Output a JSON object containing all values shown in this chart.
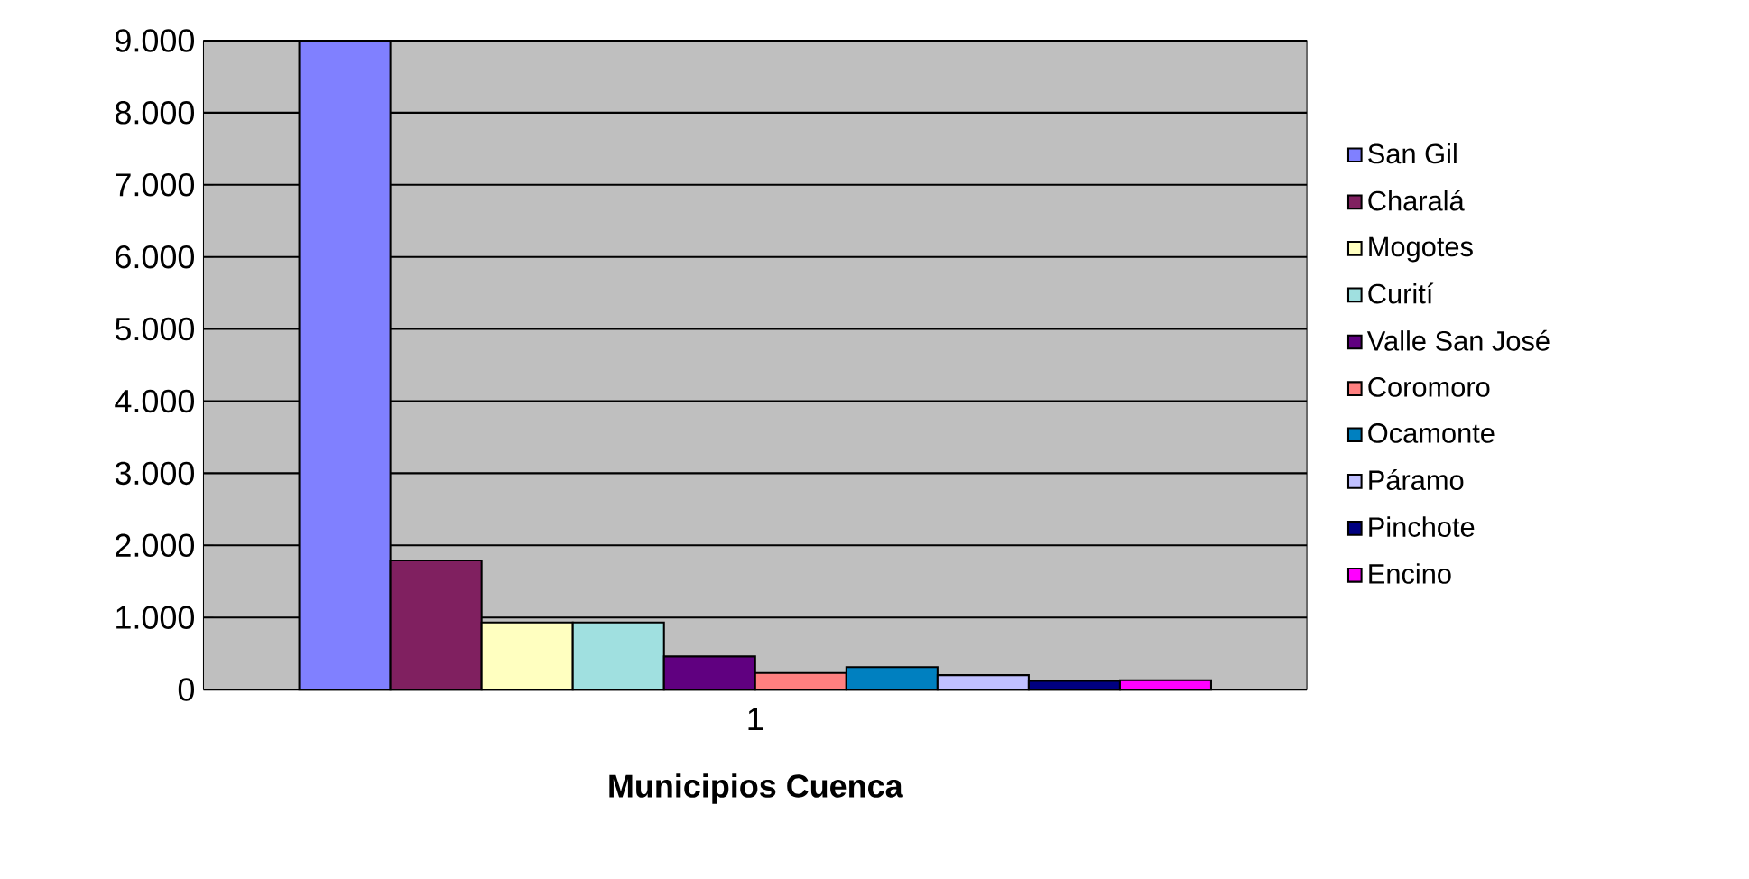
{
  "chart_data": {
    "type": "bar",
    "xlabel": "Municipios Cuenca",
    "categories": [
      "1"
    ],
    "series": [
      {
        "name": "San Gil",
        "color": "#8080ff",
        "values": [
          9000
        ]
      },
      {
        "name": "Charalá",
        "color": "#802060",
        "values": [
          1790
        ]
      },
      {
        "name": "Mogotes",
        "color": "#ffffc0",
        "values": [
          930
        ]
      },
      {
        "name": "Curití",
        "color": "#a0e0e0",
        "values": [
          930
        ]
      },
      {
        "name": "Valle San José",
        "color": "#600080",
        "values": [
          460
        ]
      },
      {
        "name": "Coromoro",
        "color": "#ff8080",
        "values": [
          230
        ]
      },
      {
        "name": "Ocamonte",
        "color": "#0080c0",
        "values": [
          310
        ]
      },
      {
        "name": "Páramo",
        "color": "#c0c0ff",
        "values": [
          200
        ]
      },
      {
        "name": "Pinchote",
        "color": "#000080",
        "values": [
          120
        ]
      },
      {
        "name": "Encino",
        "color": "#ff00ff",
        "values": [
          130
        ]
      }
    ],
    "ylim": [
      0,
      9000
    ],
    "yticks": [
      {
        "value": 0,
        "label": "0"
      },
      {
        "value": 1000,
        "label": "1.000"
      },
      {
        "value": 2000,
        "label": "2.000"
      },
      {
        "value": 3000,
        "label": "3.000"
      },
      {
        "value": 4000,
        "label": "4.000"
      },
      {
        "value": 5000,
        "label": "5.000"
      },
      {
        "value": 6000,
        "label": "6.000"
      },
      {
        "value": 7000,
        "label": "7.000"
      },
      {
        "value": 8000,
        "label": "8.000"
      },
      {
        "value": 9000,
        "label": "9.000"
      }
    ],
    "grid": "y",
    "legend": "right"
  }
}
